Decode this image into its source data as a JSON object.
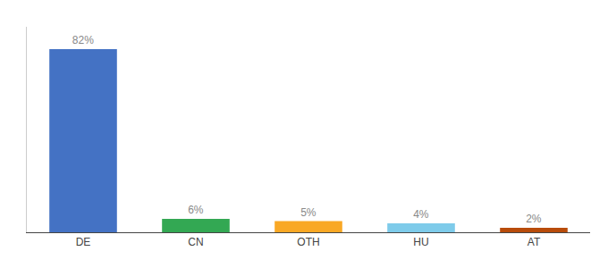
{
  "chart_data": {
    "type": "bar",
    "categories": [
      "DE",
      "CN",
      "OTH",
      "HU",
      "AT"
    ],
    "values": [
      82,
      6,
      5,
      4,
      2
    ],
    "value_labels": [
      "82%",
      "6%",
      "5%",
      "4%",
      "2%"
    ],
    "colors": [
      "#4472c4",
      "#33a853",
      "#f9a825",
      "#7ecbea",
      "#b84c0a"
    ],
    "ylim": [
      0,
      92
    ],
    "data_labels": true,
    "tick_labels": "x",
    "grid": false
  }
}
